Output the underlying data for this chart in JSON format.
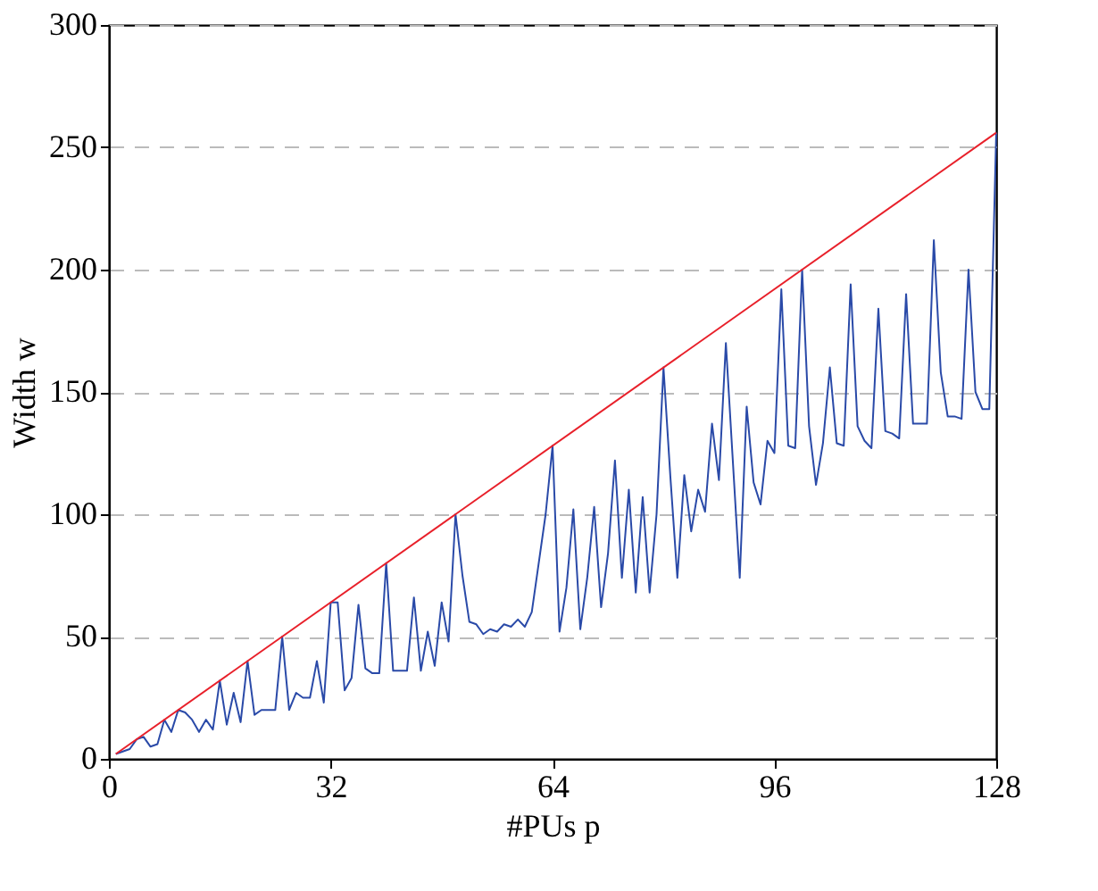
{
  "chart_data": {
    "type": "line",
    "xlabel": "#PUs p",
    "ylabel": "Width w",
    "xlim": [
      0,
      128
    ],
    "ylim": [
      0,
      300
    ],
    "xticks": [
      0,
      32,
      64,
      96,
      128
    ],
    "yticks": [
      0,
      50,
      100,
      150,
      200,
      250,
      300
    ],
    "grid": "y",
    "x": [
      1,
      2,
      3,
      4,
      5,
      6,
      7,
      8,
      9,
      10,
      11,
      12,
      13,
      14,
      15,
      16,
      17,
      18,
      19,
      20,
      21,
      22,
      23,
      24,
      25,
      26,
      27,
      28,
      29,
      30,
      31,
      32,
      33,
      34,
      35,
      36,
      37,
      38,
      39,
      40,
      41,
      42,
      43,
      44,
      45,
      46,
      47,
      48,
      49,
      50,
      51,
      52,
      53,
      54,
      55,
      56,
      57,
      58,
      59,
      60,
      61,
      62,
      63,
      64,
      65,
      66,
      67,
      68,
      69,
      70,
      71,
      72,
      73,
      74,
      75,
      76,
      77,
      78,
      79,
      80,
      81,
      82,
      83,
      84,
      85,
      86,
      87,
      88,
      89,
      90,
      91,
      92,
      93,
      94,
      95,
      96,
      97,
      98,
      99,
      100,
      101,
      102,
      103,
      104,
      105,
      106,
      107,
      108,
      109,
      110,
      111,
      112,
      113,
      114,
      115,
      116,
      117,
      118,
      119,
      120,
      121,
      122,
      123,
      124,
      125,
      126,
      127,
      128
    ],
    "series": [
      {
        "color": "#2a4aa8",
        "values": [
          2,
          3,
          4,
          8,
          9,
          5,
          6,
          16,
          11,
          20,
          19,
          16,
          11,
          16,
          12,
          32,
          14,
          27,
          15,
          40,
          18,
          20,
          20,
          20,
          50,
          20,
          27,
          25,
          25,
          40,
          23,
          64,
          64,
          28,
          33,
          63,
          37,
          35,
          35,
          80,
          36,
          36,
          36,
          66,
          36,
          52,
          38,
          64,
          48,
          100,
          75,
          56,
          55,
          51,
          53,
          52,
          55,
          54,
          57,
          54,
          60,
          80,
          100,
          128,
          52,
          70,
          102,
          53,
          74,
          103,
          62,
          84,
          122,
          74,
          110,
          68,
          107,
          68,
          100,
          160,
          115,
          74,
          116,
          93,
          110,
          101,
          137,
          114,
          170,
          122,
          74,
          144,
          113,
          104,
          130,
          125,
          192,
          128,
          127,
          200,
          136,
          112,
          129,
          160,
          129,
          128,
          194,
          136,
          130,
          127,
          184,
          134,
          133,
          131,
          190,
          137,
          137,
          137,
          212,
          158,
          140,
          140,
          139,
          200,
          150,
          143,
          143,
          256
        ]
      },
      {
        "color": "#e8202a",
        "x": [
          1,
          128
        ],
        "values": [
          2,
          256
        ]
      }
    ]
  }
}
